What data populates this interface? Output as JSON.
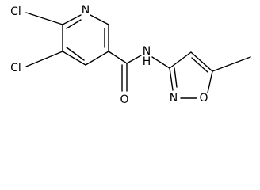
{
  "atoms": {
    "chlorine_top": "Cl",
    "chlorine_bottom": "Cl",
    "pyridine_nitrogen": "N",
    "carbonyl_oxygen": "O",
    "amide_nitrogen": "N",
    "amide_hydrogen": "H",
    "isoxazole_nitrogen": "N",
    "isoxazole_oxygen": "O"
  }
}
